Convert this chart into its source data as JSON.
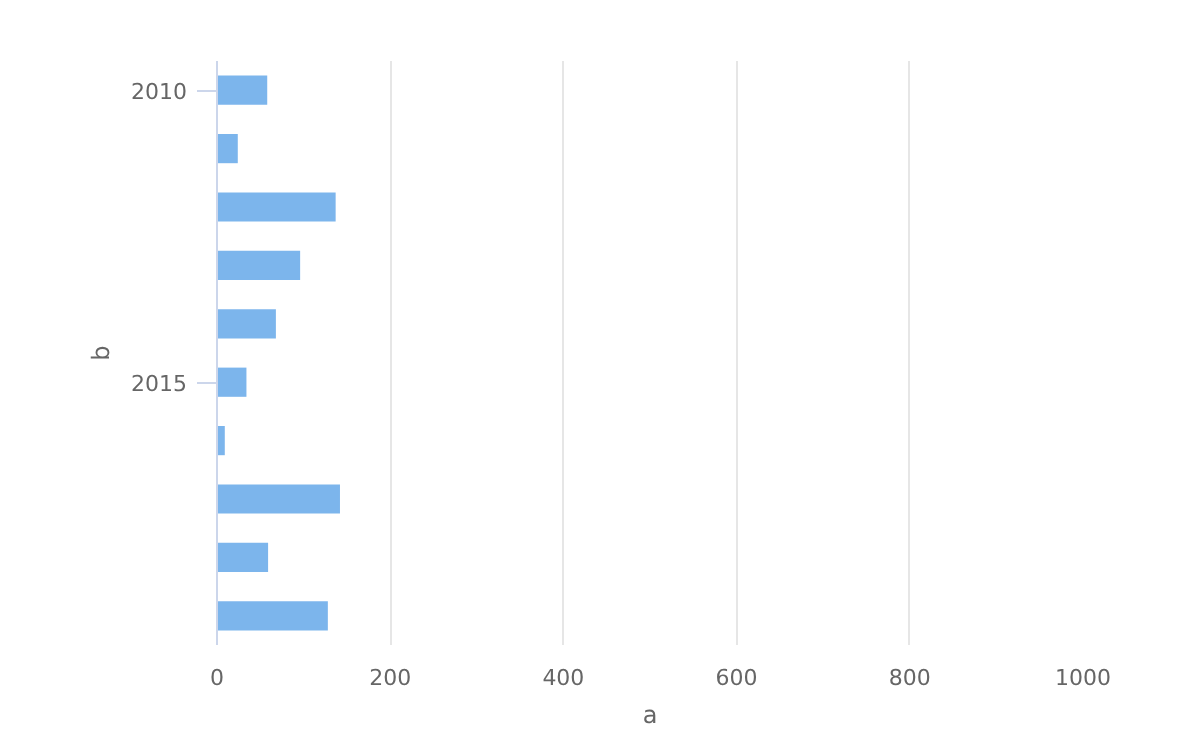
{
  "chart_data": {
    "type": "bar",
    "orientation": "horizontal",
    "xlabel": "a",
    "ylabel": "b",
    "categories": [
      "2010",
      null,
      null,
      null,
      null,
      "2015",
      null,
      null,
      null,
      null
    ],
    "values": [
      58,
      24,
      137,
      96,
      68,
      34,
      9,
      142,
      59,
      128
    ],
    "color": "#7cb5ec",
    "xlim": [
      0,
      1000
    ],
    "xticks": [
      0,
      200,
      400,
      600,
      800,
      1000
    ],
    "grid": "x"
  }
}
